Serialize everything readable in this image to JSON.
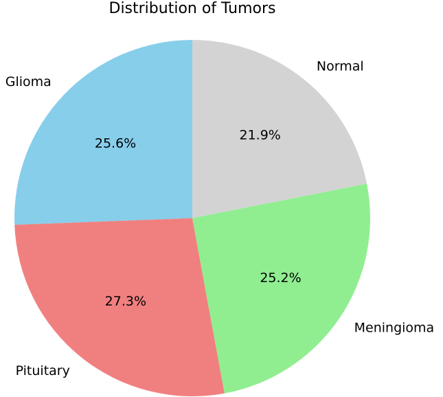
{
  "chart_data": {
    "type": "pie",
    "title": "Distribution of Tumors",
    "categories": [
      "Glioma",
      "Pituitary",
      "Meningioma",
      "Normal"
    ],
    "values": [
      25.6,
      27.3,
      25.2,
      21.9
    ],
    "value_labels": [
      "25.6%",
      "27.3%",
      "25.2%",
      "21.9%"
    ],
    "colors": [
      "#87ceeb",
      "#f08080",
      "#90ee90",
      "#d3d3d3"
    ]
  }
}
